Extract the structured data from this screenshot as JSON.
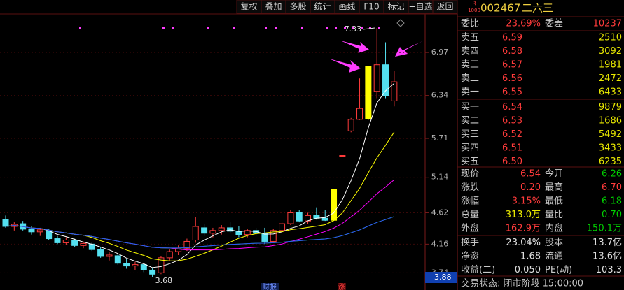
{
  "toolbar": [
    "复权",
    "叠加",
    "多股",
    "统计",
    "画线",
    "F10",
    "标记",
    "+自选",
    "返回"
  ],
  "stock": {
    "badge": "R",
    "badge_sub": "1000",
    "code": "002467",
    "name": "二六三"
  },
  "chart_data": {
    "type": "candlestick",
    "open": [
      4.52,
      4.42,
      4.46,
      4.38,
      4.34,
      4.36,
      4.24,
      4.18,
      4.22,
      4.14,
      4.16,
      4.08,
      3.98,
      3.99,
      3.88,
      3.84,
      3.86,
      3.78,
      3.74,
      3.96,
      4.05,
      4.1,
      4.22,
      4.4,
      4.32,
      4.36,
      4.4,
      4.35,
      4.3,
      4.36,
      4.32,
      4.2,
      4.36,
      4.46,
      4.62,
      4.5,
      4.58,
      4.54,
      4.51,
      5.46,
      5.82,
      5.99,
      6.0,
      6.4,
      6.79,
      6.26
    ],
    "high": [
      4.58,
      4.48,
      4.5,
      4.42,
      4.4,
      4.38,
      4.28,
      4.26,
      4.24,
      4.2,
      4.18,
      4.12,
      4.04,
      4.02,
      3.94,
      3.9,
      3.88,
      3.82,
      3.98,
      4.08,
      4.14,
      4.24,
      4.56,
      4.46,
      4.4,
      4.44,
      4.48,
      4.42,
      4.38,
      4.4,
      4.4,
      4.38,
      4.48,
      4.66,
      4.66,
      4.62,
      4.7,
      4.66,
      4.96,
      5.46,
      6.01,
      6.59,
      6.77,
      7.33,
      7.12,
      6.7
    ],
    "low": [
      4.4,
      4.36,
      4.36,
      4.3,
      4.28,
      4.22,
      4.16,
      4.15,
      4.12,
      4.1,
      4.06,
      3.96,
      3.92,
      3.86,
      3.8,
      3.78,
      3.75,
      3.68,
      3.72,
      3.92,
      4.0,
      4.06,
      4.18,
      4.28,
      4.26,
      4.3,
      4.32,
      4.26,
      4.26,
      4.28,
      4.16,
      4.18,
      4.32,
      4.44,
      4.48,
      4.46,
      4.52,
      4.5,
      4.51,
      5.46,
      5.8,
      5.98,
      5.98,
      6.3,
      6.3,
      6.18
    ],
    "close": [
      4.42,
      4.45,
      4.38,
      4.34,
      4.37,
      4.24,
      4.18,
      4.22,
      4.14,
      4.17,
      4.08,
      3.98,
      4.0,
      3.88,
      3.84,
      3.86,
      3.78,
      3.72,
      3.96,
      4.05,
      4.1,
      4.2,
      4.42,
      4.32,
      4.36,
      4.4,
      4.35,
      4.3,
      4.36,
      4.32,
      4.2,
      4.36,
      4.46,
      4.62,
      4.5,
      4.58,
      4.54,
      4.51,
      4.96,
      5.46,
      5.99,
      6.15,
      6.77,
      6.79,
      6.34,
      6.54
    ],
    "highlight": {
      "color": "#ffff00",
      "indices": [
        38,
        42
      ]
    },
    "up_color": "#ff3b3b",
    "down_color": "#54e0f0",
    "ylim": [
      3.6,
      7.74
    ],
    "yticks": [
      3.74,
      4.16,
      4.62,
      5.14,
      5.71,
      6.34,
      6.97
    ],
    "grid": true,
    "ma": [
      {
        "period": 5,
        "color": "#ffffff"
      },
      {
        "period": 10,
        "color": "#ffff00"
      },
      {
        "period": 20,
        "color": "#ff00ff"
      },
      {
        "period": 60,
        "color": "#00e000"
      },
      {
        "period": 120,
        "color": "#3050ff"
      }
    ],
    "axis_tag": "3.88",
    "events": [
      "财报",
      "涨"
    ]
  },
  "quote": {
    "weibi": [
      "委比",
      "23.69%",
      "委差",
      "10237"
    ],
    "order_book": [
      [
        "卖五",
        "6.59",
        "2510"
      ],
      [
        "卖四",
        "6.58",
        "3092"
      ],
      [
        "卖三",
        "6.57",
        "1981"
      ],
      [
        "卖二",
        "6.56",
        "2472"
      ],
      [
        "卖一",
        "6.55",
        "6433"
      ],
      [
        "买一",
        "6.54",
        "9879"
      ],
      [
        "买二",
        "6.53",
        "1686"
      ],
      [
        "买三",
        "6.52",
        "5492"
      ],
      [
        "买四",
        "6.51",
        "3433"
      ],
      [
        "买五",
        "6.50",
        "6235"
      ]
    ],
    "stats": [
      [
        [
          "现价",
          "6.54",
          "up"
        ],
        [
          "今开",
          "6.26",
          "down"
        ]
      ],
      [
        [
          "涨跌",
          "0.20",
          "up"
        ],
        [
          "最高",
          "6.70",
          "up"
        ]
      ],
      [
        [
          "涨幅",
          "3.15%",
          "up"
        ],
        [
          "最低",
          "6.18",
          "down"
        ]
      ],
      [
        [
          "总量",
          "313.0万",
          "vol"
        ],
        [
          "量比",
          "0.70",
          "down"
        ]
      ],
      [
        [
          "外盘",
          "162.9万",
          "up"
        ],
        [
          "内盘",
          "150.1万",
          "down"
        ]
      ],
      [
        [
          "换手",
          "23.04%",
          "plain"
        ],
        [
          "股本",
          "13.7亿",
          "plain"
        ]
      ],
      [
        [
          "净资",
          "1.68",
          "plain"
        ],
        [
          "流通",
          "13.6亿",
          "plain"
        ]
      ],
      [
        [
          "收益(二)",
          "0.050",
          "plain"
        ],
        [
          "PE(动)",
          "103.3",
          "plain"
        ]
      ]
    ],
    "status": "交易状态: 闭市阶段 15:00:00"
  }
}
